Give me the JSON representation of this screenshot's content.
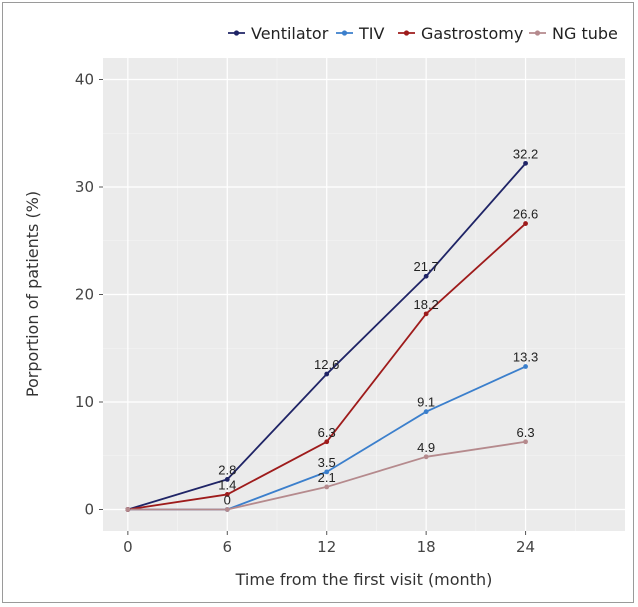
{
  "chart_data": {
    "type": "line",
    "title": "",
    "xlabel": "Time from the first visit (month)",
    "ylabel": "Porportion of patients (%)",
    "x": [
      0,
      6,
      12,
      18,
      24
    ],
    "xticks": [
      "0",
      "6",
      "12",
      "18",
      "24"
    ],
    "yticks": [
      "0",
      "10",
      "20",
      "30",
      "40"
    ],
    "xlim": [
      -1.5,
      30
    ],
    "ylim": [
      -2,
      42
    ],
    "grid": true,
    "legend_position": "top",
    "series": [
      {
        "name": "Ventilator",
        "color": "#1f2466",
        "values": [
          0,
          2.8,
          12.6,
          21.7,
          32.2
        ],
        "labels": [
          "",
          "2.8",
          "12.6",
          "21.7",
          "32.2"
        ]
      },
      {
        "name": "TIV",
        "color": "#3b7fcc",
        "values": [
          0,
          0,
          3.5,
          9.1,
          13.3
        ],
        "labels": [
          "",
          "0",
          "3.5",
          "9.1",
          "13.3"
        ]
      },
      {
        "name": "Gastrostomy",
        "color": "#9e1b1b",
        "values": [
          0,
          1.4,
          6.3,
          18.2,
          26.6
        ],
        "labels": [
          "",
          "1.4",
          "6.3",
          "18.2",
          "26.6"
        ]
      },
      {
        "name": "NG tube",
        "color": "#b58a8d",
        "values": [
          0,
          0,
          2.1,
          4.9,
          6.3
        ],
        "labels": [
          "",
          "",
          "2.1",
          "4.9",
          "6.3"
        ]
      }
    ]
  }
}
